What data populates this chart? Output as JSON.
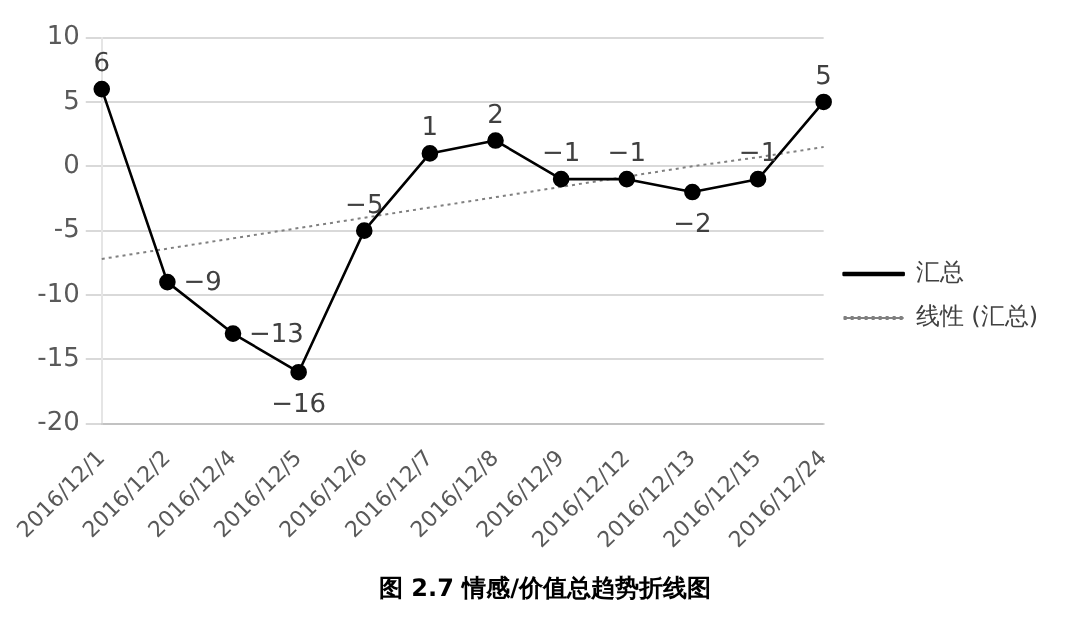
{
  "chart_data": {
    "type": "line",
    "categories": [
      "2016/12/1",
      "2016/12/2",
      "2016/12/4",
      "2016/12/5",
      "2016/12/6",
      "2016/12/7",
      "2016/12/8",
      "2016/12/9",
      "2016/12/12",
      "2016/12/13",
      "2016/12/15",
      "2016/12/24"
    ],
    "series": [
      {
        "name": "汇总",
        "color": "#000000",
        "marker": "circle",
        "line_style": "solid",
        "values": [
          6,
          -9,
          -13,
          -16,
          -5,
          1,
          2,
          -1,
          -1,
          -2,
          -1,
          5
        ],
        "value_labels": [
          "6",
          "−9",
          "−13",
          "−16",
          "−5",
          "1",
          "2",
          "−1",
          "−1",
          "−2",
          "−1",
          "5"
        ]
      },
      {
        "name": "线性 (汇总)",
        "color": "#808080",
        "marker": "none",
        "line_style": "dotted",
        "values": [
          -7.2,
          -6.4,
          -5.6,
          -4.8,
          -4.0,
          -3.2,
          -2.4,
          -1.6,
          -0.8,
          0.0,
          0.7,
          1.5
        ]
      }
    ],
    "ylim": [
      -20,
      10
    ],
    "yticks": [
      -20,
      -15,
      -10,
      -5,
      0,
      5,
      10
    ],
    "grid": "y",
    "legend": "right",
    "annotations": [
      "图 2.7  情感/价值总趋势折线图"
    ]
  }
}
